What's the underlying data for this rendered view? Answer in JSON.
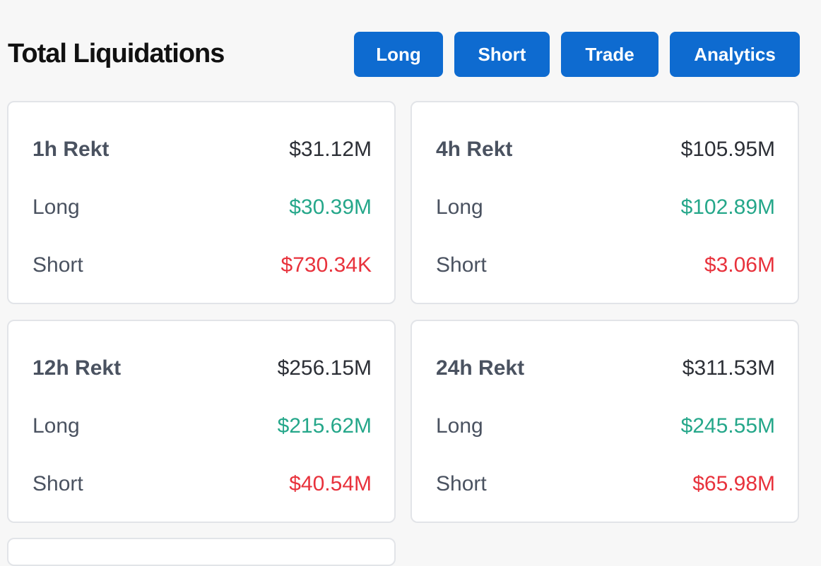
{
  "header": {
    "title": "Total Liquidations",
    "buttons": {
      "long": "Long",
      "short": "Short",
      "trade": "Trade",
      "analytics": "Analytics"
    }
  },
  "colors": {
    "button_bg": "#0e6bd0",
    "long": "#25a78a",
    "short": "#e8323c"
  },
  "cards": [
    {
      "title": "1h Rekt",
      "total": "$31.12M",
      "long_label": "Long",
      "long": "$30.39M",
      "short_label": "Short",
      "short": "$730.34K"
    },
    {
      "title": "4h Rekt",
      "total": "$105.95M",
      "long_label": "Long",
      "long": "$102.89M",
      "short_label": "Short",
      "short": "$3.06M"
    },
    {
      "title": "12h Rekt",
      "total": "$256.15M",
      "long_label": "Long",
      "long": "$215.62M",
      "short_label": "Short",
      "short": "$40.54M"
    },
    {
      "title": "24h Rekt",
      "total": "$311.53M",
      "long_label": "Long",
      "long": "$245.55M",
      "short_label": "Short",
      "short": "$65.98M"
    }
  ]
}
